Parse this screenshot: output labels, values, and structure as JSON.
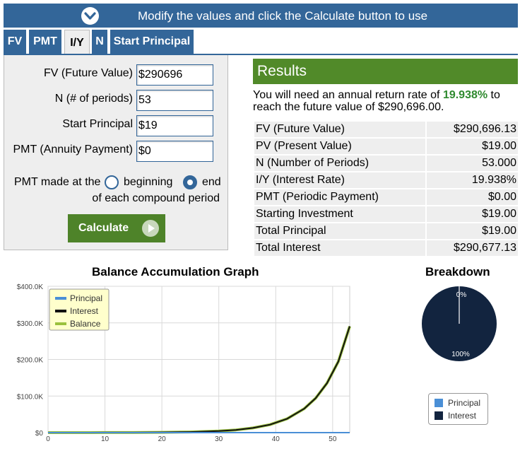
{
  "banner": {
    "text": "Modify the values and click the Calculate button to use",
    "toggle_icon": "chevron-down-icon"
  },
  "tabs": [
    {
      "label": "FV",
      "active": false
    },
    {
      "label": "PMT",
      "active": false
    },
    {
      "label": "I/Y",
      "active": true
    },
    {
      "label": "N",
      "active": false
    },
    {
      "label": "Start Principal",
      "active": false
    }
  ],
  "form": {
    "fv_label": "FV (Future Value)",
    "fv_value": "$290696",
    "n_label": "N (# of periods)",
    "n_value": "53",
    "sp_label": "Start Principal",
    "sp_value": "$19",
    "pmt_label": "PMT (Annuity Payment)",
    "pmt_value": "$0",
    "pmt_at_label": "PMT made at the",
    "beginning_label": "beginning",
    "end_label": "end",
    "period_label": "of each compound period",
    "selected_timing": "end",
    "calculate_label": "Calculate"
  },
  "results": {
    "header": "Results",
    "summary_before": "You will need an annual return rate of ",
    "summary_rate": "19.938%",
    "summary_after": " to reach the future value of $290,696.00.",
    "rows": [
      {
        "label": "FV (Future Value)",
        "value": "$290,696.13"
      },
      {
        "label": "PV (Present Value)",
        "value": "$19.00"
      },
      {
        "label": "N (Number of Periods)",
        "value": "53.000"
      },
      {
        "label": "I/Y (Interest Rate)",
        "value": "19.938%"
      },
      {
        "label": "PMT (Periodic Payment)",
        "value": "$0.00"
      },
      {
        "label": "Starting Investment",
        "value": "$19.00"
      },
      {
        "label": "Total Principal",
        "value": "$19.00"
      },
      {
        "label": "Total Interest",
        "value": "$290,677.13"
      }
    ]
  },
  "chart_data": [
    {
      "type": "line",
      "title": "Balance Accumulation Graph",
      "xlabel": "",
      "ylabel": "",
      "xlim": [
        0,
        53
      ],
      "ylim": [
        0,
        400000
      ],
      "x_ticks": [
        "0",
        "10",
        "20",
        "30",
        "40",
        "50"
      ],
      "y_ticks": [
        "$0",
        "$100.0K",
        "$200.0K",
        "$300.0K",
        "$400.0K"
      ],
      "grid": true,
      "legend_position": "top-left",
      "x": [
        0,
        5,
        10,
        15,
        20,
        25,
        30,
        33,
        36,
        39,
        42,
        45,
        47,
        49,
        51,
        53
      ],
      "series": [
        {
          "name": "Principal",
          "color": "#4a8fd6",
          "values": [
            19,
            19,
            19,
            19,
            19,
            19,
            19,
            19,
            19,
            19,
            19,
            19,
            19,
            19,
            19,
            19
          ]
        },
        {
          "name": "Interest",
          "color": "#111111",
          "values": [
            0,
            28,
            98,
            268,
            684,
            1713,
            4256,
            7346,
            12685,
            21899,
            37794,
            65218,
            93865,
            135083,
            194391,
            290677
          ]
        },
        {
          "name": "Balance",
          "color": "#9ac13d",
          "values": [
            19,
            47,
            117,
            287,
            703,
            1732,
            4275,
            7365,
            12704,
            21918,
            37813,
            65237,
            93884,
            135102,
            194410,
            290696
          ]
        }
      ]
    },
    {
      "type": "pie",
      "title": "Breakdown",
      "categories": [
        "Principal",
        "Interest"
      ],
      "values": [
        19,
        290677
      ],
      "slice_labels": [
        "0%",
        "100%"
      ],
      "colors": [
        "#4a8fd6",
        "#12243f"
      ],
      "legend_position": "bottom"
    }
  ]
}
